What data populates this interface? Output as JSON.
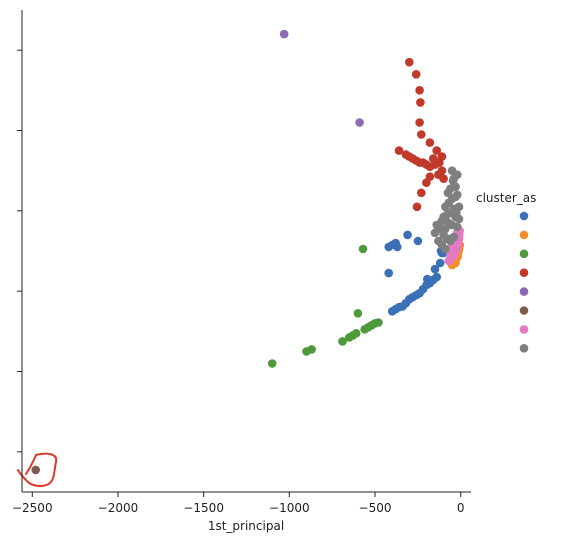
{
  "chart_data": {
    "type": "scatter",
    "xlabel": "1st_principal",
    "ylabel": "",
    "xlim": [
      -2560,
      60
    ],
    "ylim": [
      0,
      12
    ],
    "x_ticks": [
      -2500,
      -2000,
      -1500,
      -1000,
      -500,
      0
    ],
    "x_tick_labels": [
      "−2500",
      "−2000",
      "−1500",
      "−1000",
      "−500",
      "0"
    ],
    "y_ticks": [
      1,
      3,
      5,
      7,
      9,
      11
    ],
    "grid": false,
    "legend": {
      "title": "cluster_as",
      "placement": "right",
      "colors": [
        "#3b6fb6",
        "#f28e2b",
        "#4e9a3a",
        "#c0392b",
        "#8c6bb1",
        "#7f5a4e",
        "#e37ac2",
        "#7f7f7f"
      ]
    },
    "series": [
      {
        "color": "#3b6fb6",
        "points": [
          [
            -420,
            6.1
          ],
          [
            -400,
            6.15
          ],
          [
            -380,
            6.2
          ],
          [
            -370,
            6.1
          ],
          [
            -310,
            6.4
          ],
          [
            -250,
            6.25
          ],
          [
            -115,
            6.0
          ],
          [
            -120,
            5.7
          ],
          [
            -195,
            5.3
          ],
          [
            -150,
            5.55
          ],
          [
            -100,
            5.95
          ],
          [
            -70,
            6.3
          ],
          [
            -420,
            5.45
          ],
          [
            -110,
            5.95
          ],
          [
            -400,
            4.5
          ],
          [
            -380,
            4.55
          ],
          [
            -360,
            4.6
          ],
          [
            -340,
            4.62
          ],
          [
            -320,
            4.7
          ],
          [
            -300,
            4.8
          ],
          [
            -280,
            4.85
          ],
          [
            -260,
            4.9
          ],
          [
            -240,
            4.95
          ],
          [
            -220,
            5.05
          ],
          [
            -200,
            5.15
          ],
          [
            -180,
            5.2
          ],
          [
            -160,
            5.28
          ],
          [
            -140,
            5.35
          ]
        ]
      },
      {
        "color": "#f28e2b",
        "points": [
          [
            -50,
            5.65
          ],
          [
            -40,
            5.7
          ],
          [
            -30,
            5.78
          ],
          [
            -25,
            5.82
          ],
          [
            -20,
            5.88
          ],
          [
            -15,
            5.95
          ],
          [
            -12,
            6.0
          ],
          [
            -10,
            6.05
          ],
          [
            -8,
            6.1
          ],
          [
            -30,
            5.7
          ],
          [
            -18,
            5.85
          ],
          [
            -5,
            6.15
          ]
        ]
      },
      {
        "color": "#4e9a3a",
        "points": [
          [
            -1100,
            3.2
          ],
          [
            -900,
            3.5
          ],
          [
            -870,
            3.55
          ],
          [
            -690,
            3.75
          ],
          [
            -650,
            3.85
          ],
          [
            -630,
            3.9
          ],
          [
            -610,
            3.95
          ],
          [
            -560,
            4.05
          ],
          [
            -540,
            4.1
          ],
          [
            -520,
            4.15
          ],
          [
            -500,
            4.2
          ],
          [
            -480,
            4.22
          ],
          [
            -600,
            4.45
          ],
          [
            -570,
            6.05
          ]
        ]
      },
      {
        "color": "#c0392b",
        "points": [
          [
            -300,
            10.7
          ],
          [
            -260,
            10.4
          ],
          [
            -240,
            10.0
          ],
          [
            -235,
            9.7
          ],
          [
            -240,
            9.2
          ],
          [
            -230,
            8.9
          ],
          [
            -180,
            8.7
          ],
          [
            -360,
            8.5
          ],
          [
            -320,
            8.4
          ],
          [
            -300,
            8.35
          ],
          [
            -280,
            8.3
          ],
          [
            -260,
            8.25
          ],
          [
            -240,
            8.2
          ],
          [
            -220,
            8.2
          ],
          [
            -200,
            8.15
          ],
          [
            -180,
            8.1
          ],
          [
            -160,
            8.3
          ],
          [
            -140,
            8.5
          ],
          [
            -125,
            8.2
          ],
          [
            -110,
            8.0
          ],
          [
            -100,
            7.8
          ],
          [
            -130,
            7.9
          ],
          [
            -200,
            7.7
          ],
          [
            -230,
            7.45
          ],
          [
            -255,
            7.1
          ],
          [
            -110,
            8.35
          ],
          [
            -150,
            8.15
          ],
          [
            -180,
            7.85
          ]
        ]
      },
      {
        "color": "#8c6bb1",
        "points": [
          [
            -1030,
            11.4
          ],
          [
            -590,
            9.2
          ]
        ]
      },
      {
        "color": "#7f5a4e",
        "points": [
          [
            -2480,
            0.55
          ]
        ]
      },
      {
        "color": "#e37ac2",
        "points": [
          [
            -70,
            5.75
          ],
          [
            -60,
            5.8
          ],
          [
            -50,
            5.85
          ],
          [
            -40,
            5.9
          ],
          [
            -30,
            6.0
          ],
          [
            -20,
            6.1
          ],
          [
            -15,
            6.2
          ],
          [
            -10,
            6.3
          ],
          [
            -8,
            6.4
          ],
          [
            -6,
            6.5
          ],
          [
            -60,
            5.9
          ],
          [
            -40,
            6.05
          ],
          [
            -30,
            6.15
          ],
          [
            -25,
            6.25
          ],
          [
            -55,
            6.1
          ],
          [
            -45,
            6.2
          ],
          [
            -35,
            6.35
          ],
          [
            -20,
            6.45
          ]
        ]
      },
      {
        "color": "#7f7f7f",
        "points": [
          [
            -50,
            8.0
          ],
          [
            -40,
            7.8
          ],
          [
            -30,
            7.6
          ],
          [
            -60,
            7.55
          ],
          [
            -20,
            7.4
          ],
          [
            -50,
            7.3
          ],
          [
            -70,
            7.2
          ],
          [
            -90,
            7.1
          ],
          [
            -40,
            7.05
          ],
          [
            -60,
            6.95
          ],
          [
            -80,
            6.9
          ],
          [
            -100,
            6.85
          ],
          [
            -30,
            6.85
          ],
          [
            -110,
            6.75
          ],
          [
            -70,
            6.7
          ],
          [
            -50,
            6.65
          ],
          [
            -20,
            6.6
          ],
          [
            -90,
            6.55
          ],
          [
            -120,
            6.55
          ],
          [
            -100,
            6.4
          ],
          [
            -80,
            6.3
          ],
          [
            -60,
            6.25
          ],
          [
            -40,
            6.35
          ],
          [
            -130,
            6.25
          ],
          [
            -110,
            6.15
          ],
          [
            -90,
            6.05
          ],
          [
            -20,
            7.9
          ],
          [
            -30,
            7.35
          ],
          [
            -10,
            7.1
          ],
          [
            -10,
            6.8
          ],
          [
            -140,
            6.65
          ],
          [
            -150,
            6.45
          ],
          [
            -75,
            7.45
          ],
          [
            -45,
            7.75
          ],
          [
            -25,
            6.95
          ]
        ]
      }
    ]
  }
}
